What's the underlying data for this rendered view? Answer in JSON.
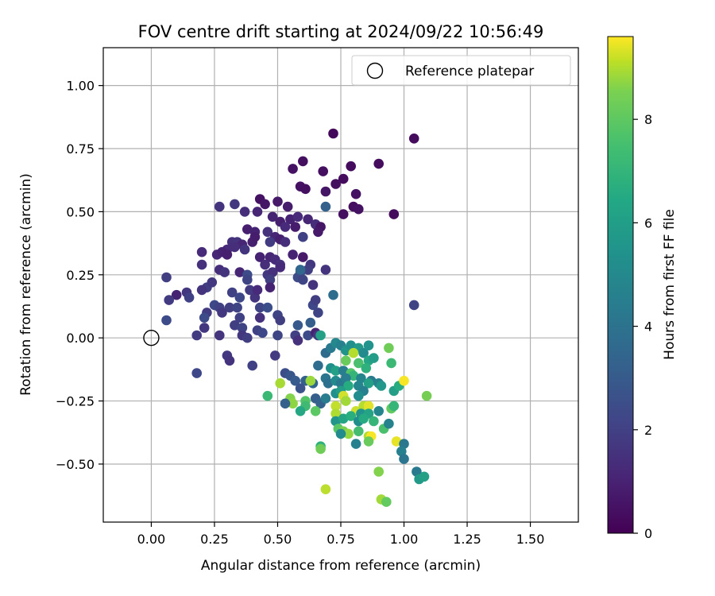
{
  "chart_data": {
    "type": "scatter",
    "title": "FOV centre drift starting at 2024/09/22 10:56:49",
    "xlabel": "Angular distance from reference (arcmin)",
    "ylabel": "Rotation from reference (arcmin)",
    "xlim": [
      -0.19,
      1.69
    ],
    "ylim": [
      -0.73,
      1.15
    ],
    "xticks": [
      "0.00",
      "0.25",
      "0.50",
      "0.75",
      "1.00",
      "1.25",
      "1.50"
    ],
    "xtick_values": [
      0,
      0.25,
      0.5,
      0.75,
      1.0,
      1.25,
      1.5
    ],
    "yticks": [
      "−0.50",
      "−0.25",
      "0.00",
      "0.25",
      "0.50",
      "0.75",
      "1.00"
    ],
    "ytick_values": [
      -0.5,
      -0.25,
      0,
      0.25,
      0.5,
      0.75,
      1.0
    ],
    "grid": true,
    "legend": {
      "placement": "top-right",
      "entries": [
        {
          "label": "Reference platepar",
          "marker": "open-circle"
        }
      ]
    },
    "reference_point": {
      "x": 0.0,
      "y": 0.0
    },
    "colorbar": {
      "label": "Hours from first FF file",
      "colormap": "viridis",
      "range": [
        0,
        9.6
      ],
      "ticks": [
        "0",
        "2",
        "4",
        "6",
        "8"
      ],
      "tick_values": [
        0,
        2,
        4,
        6,
        8
      ]
    },
    "points": [
      {
        "x": 0.72,
        "y": 0.81,
        "h": 0.2
      },
      {
        "x": 1.04,
        "y": 0.79,
        "h": 0.3
      },
      {
        "x": 0.9,
        "y": 0.69,
        "h": 0.3
      },
      {
        "x": 0.6,
        "y": 0.7,
        "h": 0.4
      },
      {
        "x": 0.56,
        "y": 0.67,
        "h": 0.5
      },
      {
        "x": 0.79,
        "y": 0.68,
        "h": 0.3
      },
      {
        "x": 0.68,
        "y": 0.66,
        "h": 0.4
      },
      {
        "x": 0.76,
        "y": 0.63,
        "h": 0.3
      },
      {
        "x": 0.73,
        "y": 0.61,
        "h": 0.4
      },
      {
        "x": 0.59,
        "y": 0.6,
        "h": 0.5
      },
      {
        "x": 0.61,
        "y": 0.59,
        "h": 0.4
      },
      {
        "x": 0.69,
        "y": 0.58,
        "h": 0.6
      },
      {
        "x": 0.81,
        "y": 0.57,
        "h": 0.5
      },
      {
        "x": 0.43,
        "y": 0.55,
        "h": 0.5
      },
      {
        "x": 0.45,
        "y": 0.53,
        "h": 0.6
      },
      {
        "x": 0.5,
        "y": 0.54,
        "h": 0.7
      },
      {
        "x": 0.54,
        "y": 0.52,
        "h": 0.8
      },
      {
        "x": 0.8,
        "y": 0.52,
        "h": 0.4
      },
      {
        "x": 0.82,
        "y": 0.51,
        "h": 0.5
      },
      {
        "x": 0.76,
        "y": 0.49,
        "h": 0.4
      },
      {
        "x": 0.96,
        "y": 0.49,
        "h": 0.3
      },
      {
        "x": 0.69,
        "y": 0.52,
        "h": 3.0
      },
      {
        "x": 0.27,
        "y": 0.52,
        "h": 1.5
      },
      {
        "x": 0.33,
        "y": 0.53,
        "h": 1.6
      },
      {
        "x": 0.37,
        "y": 0.5,
        "h": 1.3
      },
      {
        "x": 0.42,
        "y": 0.5,
        "h": 1.1
      },
      {
        "x": 0.48,
        "y": 0.48,
        "h": 1.0
      },
      {
        "x": 0.51,
        "y": 0.46,
        "h": 0.9
      },
      {
        "x": 0.55,
        "y": 0.47,
        "h": 1.0
      },
      {
        "x": 0.58,
        "y": 0.48,
        "h": 1.2
      },
      {
        "x": 0.62,
        "y": 0.47,
        "h": 1.1
      },
      {
        "x": 0.65,
        "y": 0.45,
        "h": 1.3
      },
      {
        "x": 0.67,
        "y": 0.44,
        "h": 0.6
      },
      {
        "x": 0.66,
        "y": 0.42,
        "h": 0.7
      },
      {
        "x": 0.53,
        "y": 0.44,
        "h": 1.2
      },
      {
        "x": 0.57,
        "y": 0.44,
        "h": 0.8
      },
      {
        "x": 0.38,
        "y": 0.43,
        "h": 0.9
      },
      {
        "x": 0.41,
        "y": 0.42,
        "h": 1.0
      },
      {
        "x": 0.46,
        "y": 0.42,
        "h": 1.4
      },
      {
        "x": 0.49,
        "y": 0.4,
        "h": 1.1
      },
      {
        "x": 0.51,
        "y": 0.39,
        "h": 0.9
      },
      {
        "x": 0.47,
        "y": 0.38,
        "h": 1.7
      },
      {
        "x": 0.32,
        "y": 0.38,
        "h": 1.4
      },
      {
        "x": 0.34,
        "y": 0.38,
        "h": 1.5
      },
      {
        "x": 0.36,
        "y": 0.37,
        "h": 1.1
      },
      {
        "x": 0.4,
        "y": 0.38,
        "h": 0.9
      },
      {
        "x": 0.41,
        "y": 0.4,
        "h": 0.8
      },
      {
        "x": 0.53,
        "y": 0.38,
        "h": 1.3
      },
      {
        "x": 0.6,
        "y": 0.4,
        "h": 1.9
      },
      {
        "x": 0.3,
        "y": 0.35,
        "h": 1.2
      },
      {
        "x": 0.33,
        "y": 0.36,
        "h": 1.3
      },
      {
        "x": 0.37,
        "y": 0.35,
        "h": 1.5
      },
      {
        "x": 0.26,
        "y": 0.33,
        "h": 1.1
      },
      {
        "x": 0.28,
        "y": 0.34,
        "h": 1.0
      },
      {
        "x": 0.3,
        "y": 0.33,
        "h": 0.9
      },
      {
        "x": 0.2,
        "y": 0.34,
        "h": 1.2
      },
      {
        "x": 0.43,
        "y": 0.32,
        "h": 1.0
      },
      {
        "x": 0.47,
        "y": 0.32,
        "h": 1.1
      },
      {
        "x": 0.45,
        "y": 0.29,
        "h": 1.3
      },
      {
        "x": 0.49,
        "y": 0.31,
        "h": 1.2
      },
      {
        "x": 0.51,
        "y": 0.29,
        "h": 1.4
      },
      {
        "x": 0.56,
        "y": 0.33,
        "h": 1.0
      },
      {
        "x": 0.6,
        "y": 0.32,
        "h": 0.7
      },
      {
        "x": 0.63,
        "y": 0.29,
        "h": 1.6
      },
      {
        "x": 0.62,
        "y": 0.27,
        "h": 1.8
      },
      {
        "x": 0.59,
        "y": 0.26,
        "h": 2.4
      },
      {
        "x": 0.58,
        "y": 0.24,
        "h": 2.2
      },
      {
        "x": 0.6,
        "y": 0.23,
        "h": 2.0
      },
      {
        "x": 0.2,
        "y": 0.29,
        "h": 1.4
      },
      {
        "x": 0.27,
        "y": 0.27,
        "h": 1.3
      },
      {
        "x": 0.29,
        "y": 0.26,
        "h": 1.5
      },
      {
        "x": 0.35,
        "y": 0.26,
        "h": 1.1
      },
      {
        "x": 0.38,
        "y": 0.25,
        "h": 2.2
      },
      {
        "x": 0.38,
        "y": 0.23,
        "h": 2.0
      },
      {
        "x": 0.46,
        "y": 0.25,
        "h": 1.6
      },
      {
        "x": 0.48,
        "y": 0.26,
        "h": 1.4
      },
      {
        "x": 0.51,
        "y": 0.28,
        "h": 1.2
      },
      {
        "x": 0.47,
        "y": 0.23,
        "h": 1.8
      },
      {
        "x": 0.06,
        "y": 0.24,
        "h": 1.8
      },
      {
        "x": 0.1,
        "y": 0.17,
        "h": 1.0
      },
      {
        "x": 0.14,
        "y": 0.18,
        "h": 1.6
      },
      {
        "x": 0.07,
        "y": 0.15,
        "h": 1.7
      },
      {
        "x": 0.15,
        "y": 0.16,
        "h": 1.9
      },
      {
        "x": 0.22,
        "y": 0.2,
        "h": 1.8
      },
      {
        "x": 0.24,
        "y": 0.22,
        "h": 1.6
      },
      {
        "x": 0.2,
        "y": 0.19,
        "h": 1.5
      },
      {
        "x": 0.32,
        "y": 0.18,
        "h": 1.9
      },
      {
        "x": 0.35,
        "y": 0.16,
        "h": 2.1
      },
      {
        "x": 0.39,
        "y": 0.19,
        "h": 1.7
      },
      {
        "x": 0.41,
        "y": 0.16,
        "h": 1.5
      },
      {
        "x": 0.42,
        "y": 0.19,
        "h": 1.2
      },
      {
        "x": 0.47,
        "y": 0.2,
        "h": 1.0
      },
      {
        "x": 0.43,
        "y": 0.12,
        "h": 2.0
      },
      {
        "x": 0.46,
        "y": 0.12,
        "h": 2.3
      },
      {
        "x": 0.25,
        "y": 0.13,
        "h": 2.1
      },
      {
        "x": 0.27,
        "y": 0.12,
        "h": 1.9
      },
      {
        "x": 0.31,
        "y": 0.12,
        "h": 1.8
      },
      {
        "x": 0.34,
        "y": 0.12,
        "h": 2.0
      },
      {
        "x": 0.28,
        "y": 0.1,
        "h": 1.6
      },
      {
        "x": 0.22,
        "y": 0.1,
        "h": 1.7
      },
      {
        "x": 0.21,
        "y": 0.08,
        "h": 2.2
      },
      {
        "x": 0.35,
        "y": 0.08,
        "h": 1.9
      },
      {
        "x": 0.43,
        "y": 0.08,
        "h": 1.4
      },
      {
        "x": 0.5,
        "y": 0.09,
        "h": 2.0
      },
      {
        "x": 0.51,
        "y": 0.07,
        "h": 1.8
      },
      {
        "x": 0.06,
        "y": 0.07,
        "h": 2.2
      },
      {
        "x": 0.21,
        "y": 0.04,
        "h": 1.6
      },
      {
        "x": 0.33,
        "y": 0.05,
        "h": 1.8
      },
      {
        "x": 0.36,
        "y": 0.04,
        "h": 2.0
      },
      {
        "x": 0.42,
        "y": 0.03,
        "h": 1.9
      },
      {
        "x": 0.44,
        "y": 0.02,
        "h": 2.1
      },
      {
        "x": 0.18,
        "y": 0.01,
        "h": 1.7
      },
      {
        "x": 0.27,
        "y": 0.01,
        "h": 1.5
      },
      {
        "x": 0.36,
        "y": 0.01,
        "h": 1.6
      },
      {
        "x": 0.38,
        "y": 0.0,
        "h": 1.8
      },
      {
        "x": 0.5,
        "y": 0.01,
        "h": 2.0
      },
      {
        "x": 0.57,
        "y": 0.01,
        "h": 1.9
      },
      {
        "x": 0.58,
        "y": -0.01,
        "h": 1.4
      },
      {
        "x": 0.62,
        "y": 0.01,
        "h": 2.2
      },
      {
        "x": 0.65,
        "y": 0.02,
        "h": 1.0
      },
      {
        "x": 0.66,
        "y": 0.01,
        "h": 1.6
      },
      {
        "x": 0.3,
        "y": -0.07,
        "h": 1.6
      },
      {
        "x": 0.31,
        "y": -0.09,
        "h": 1.5
      },
      {
        "x": 0.4,
        "y": -0.11,
        "h": 1.9
      },
      {
        "x": 0.49,
        "y": -0.07,
        "h": 1.7
      },
      {
        "x": 0.18,
        "y": -0.14,
        "h": 2.1
      },
      {
        "x": 0.58,
        "y": 0.05,
        "h": 2.7
      },
      {
        "x": 0.63,
        "y": 0.06,
        "h": 2.9
      },
      {
        "x": 0.64,
        "y": 0.13,
        "h": 2.1
      },
      {
        "x": 0.65,
        "y": 0.15,
        "h": 1.8
      },
      {
        "x": 0.66,
        "y": 0.1,
        "h": 2.0
      },
      {
        "x": 0.72,
        "y": 0.17,
        "h": 3.5
      },
      {
        "x": 0.69,
        "y": 0.27,
        "h": 1.5
      },
      {
        "x": 0.64,
        "y": 0.21,
        "h": 1.5
      },
      {
        "x": 0.59,
        "y": 0.27,
        "h": 3.2
      },
      {
        "x": 1.04,
        "y": 0.13,
        "h": 2.0
      },
      {
        "x": 0.67,
        "y": 0.01,
        "h": 5.5
      },
      {
        "x": 0.69,
        "y": -0.06,
        "h": 3.4
      },
      {
        "x": 0.71,
        "y": -0.04,
        "h": 4.0
      },
      {
        "x": 0.73,
        "y": -0.02,
        "h": 4.5
      },
      {
        "x": 0.75,
        "y": -0.03,
        "h": 4.2
      },
      {
        "x": 0.77,
        "y": -0.05,
        "h": 5.0
      },
      {
        "x": 0.79,
        "y": -0.03,
        "h": 4.8
      },
      {
        "x": 0.82,
        "y": -0.04,
        "h": 5.2
      },
      {
        "x": 0.84,
        "y": -0.06,
        "h": 4.6
      },
      {
        "x": 0.86,
        "y": -0.03,
        "h": 4.9
      },
      {
        "x": 0.8,
        "y": -0.06,
        "h": 8.6
      },
      {
        "x": 0.77,
        "y": -0.09,
        "h": 7.4
      },
      {
        "x": 0.82,
        "y": -0.1,
        "h": 6.8
      },
      {
        "x": 0.86,
        "y": -0.09,
        "h": 5.8
      },
      {
        "x": 0.88,
        "y": -0.08,
        "h": 5.3
      },
      {
        "x": 0.85,
        "y": -0.12,
        "h": 6.2
      },
      {
        "x": 0.94,
        "y": -0.04,
        "h": 7.5
      },
      {
        "x": 0.95,
        "y": -0.1,
        "h": 6.5
      },
      {
        "x": 0.66,
        "y": -0.11,
        "h": 3.5
      },
      {
        "x": 0.71,
        "y": -0.12,
        "h": 4.8
      },
      {
        "x": 0.73,
        "y": -0.13,
        "h": 5.5
      },
      {
        "x": 0.76,
        "y": -0.13,
        "h": 4.1
      },
      {
        "x": 0.79,
        "y": -0.14,
        "h": 7.0
      },
      {
        "x": 0.8,
        "y": -0.15,
        "h": 6.4
      },
      {
        "x": 0.83,
        "y": -0.16,
        "h": 4.4
      },
      {
        "x": 0.87,
        "y": -0.17,
        "h": 4.0
      },
      {
        "x": 0.9,
        "y": -0.18,
        "h": 4.3
      },
      {
        "x": 0.91,
        "y": -0.19,
        "h": 5.1
      },
      {
        "x": 0.86,
        "y": -0.18,
        "h": 5.5
      },
      {
        "x": 0.53,
        "y": -0.14,
        "h": 2.3
      },
      {
        "x": 0.55,
        "y": -0.15,
        "h": 2.6
      },
      {
        "x": 0.57,
        "y": -0.17,
        "h": 2.8
      },
      {
        "x": 0.61,
        "y": -0.17,
        "h": 3.0
      },
      {
        "x": 0.64,
        "y": -0.18,
        "h": 3.2
      },
      {
        "x": 0.69,
        "y": -0.16,
        "h": 3.8
      },
      {
        "x": 0.7,
        "y": -0.18,
        "h": 3.6
      },
      {
        "x": 0.73,
        "y": -0.17,
        "h": 4.6
      },
      {
        "x": 0.75,
        "y": -0.18,
        "h": 3.9
      },
      {
        "x": 0.77,
        "y": -0.16,
        "h": 4.1
      },
      {
        "x": 0.78,
        "y": -0.19,
        "h": 6.0
      },
      {
        "x": 0.82,
        "y": -0.19,
        "h": 4.4
      },
      {
        "x": 0.84,
        "y": -0.21,
        "h": 4.2
      },
      {
        "x": 0.73,
        "y": -0.22,
        "h": 4.8
      },
      {
        "x": 0.75,
        "y": -0.21,
        "h": 5.3
      },
      {
        "x": 0.82,
        "y": -0.23,
        "h": 4.7
      },
      {
        "x": 0.59,
        "y": -0.2,
        "h": 2.5
      },
      {
        "x": 0.65,
        "y": -0.24,
        "h": 2.9
      },
      {
        "x": 0.67,
        "y": -0.26,
        "h": 3.1
      },
      {
        "x": 0.69,
        "y": -0.24,
        "h": 4.1
      },
      {
        "x": 0.96,
        "y": -0.21,
        "h": 5.4
      },
      {
        "x": 0.98,
        "y": -0.19,
        "h": 6.0
      },
      {
        "x": 1.0,
        "y": -0.17,
        "h": 9.5
      },
      {
        "x": 0.51,
        "y": -0.18,
        "h": 8.4
      },
      {
        "x": 0.55,
        "y": -0.24,
        "h": 7.8
      },
      {
        "x": 0.56,
        "y": -0.26,
        "h": 8.0
      },
      {
        "x": 0.53,
        "y": -0.26,
        "h": 3.0
      },
      {
        "x": 0.46,
        "y": -0.23,
        "h": 6.5
      },
      {
        "x": 0.61,
        "y": -0.25,
        "h": 7.0
      },
      {
        "x": 0.61,
        "y": -0.27,
        "h": 6.6
      },
      {
        "x": 0.63,
        "y": -0.17,
        "h": 8.2
      },
      {
        "x": 0.65,
        "y": -0.29,
        "h": 7.2
      },
      {
        "x": 0.59,
        "y": -0.29,
        "h": 5.8
      },
      {
        "x": 0.73,
        "y": -0.27,
        "h": 8.8
      },
      {
        "x": 0.73,
        "y": -0.3,
        "h": 8.5
      },
      {
        "x": 0.76,
        "y": -0.23,
        "h": 9.0
      },
      {
        "x": 0.77,
        "y": -0.25,
        "h": 8.3
      },
      {
        "x": 0.81,
        "y": -0.29,
        "h": 8.9
      },
      {
        "x": 0.84,
        "y": -0.27,
        "h": 8.6
      },
      {
        "x": 0.86,
        "y": -0.27,
        "h": 9.2
      },
      {
        "x": 0.83,
        "y": -0.3,
        "h": 4.9
      },
      {
        "x": 0.86,
        "y": -0.3,
        "h": 5.6
      },
      {
        "x": 0.9,
        "y": -0.29,
        "h": 4.4
      },
      {
        "x": 0.95,
        "y": -0.28,
        "h": 7.3
      },
      {
        "x": 0.96,
        "y": -0.27,
        "h": 6.4
      },
      {
        "x": 1.09,
        "y": -0.23,
        "h": 7.6
      },
      {
        "x": 0.73,
        "y": -0.33,
        "h": 5.0
      },
      {
        "x": 0.76,
        "y": -0.32,
        "h": 5.7
      },
      {
        "x": 0.79,
        "y": -0.31,
        "h": 6.1
      },
      {
        "x": 0.82,
        "y": -0.33,
        "h": 4.7
      },
      {
        "x": 0.84,
        "y": -0.32,
        "h": 5.9
      },
      {
        "x": 0.88,
        "y": -0.33,
        "h": 6.4
      },
      {
        "x": 0.92,
        "y": -0.36,
        "h": 6.8
      },
      {
        "x": 0.94,
        "y": -0.34,
        "h": 4.3
      },
      {
        "x": 0.74,
        "y": -0.36,
        "h": 7.1
      },
      {
        "x": 0.76,
        "y": -0.37,
        "h": 7.7
      },
      {
        "x": 0.78,
        "y": -0.38,
        "h": 8.1
      },
      {
        "x": 0.82,
        "y": -0.37,
        "h": 6.7
      },
      {
        "x": 0.86,
        "y": -0.39,
        "h": 8.5
      },
      {
        "x": 0.87,
        "y": -0.39,
        "h": 9.5
      },
      {
        "x": 0.75,
        "y": -0.38,
        "h": 4.6
      },
      {
        "x": 0.81,
        "y": -0.42,
        "h": 4.2
      },
      {
        "x": 0.86,
        "y": -0.41,
        "h": 7.4
      },
      {
        "x": 0.97,
        "y": -0.41,
        "h": 9.3
      },
      {
        "x": 1.0,
        "y": -0.42,
        "h": 3.9
      },
      {
        "x": 0.99,
        "y": -0.45,
        "h": 4.2
      },
      {
        "x": 0.67,
        "y": -0.43,
        "h": 6.2
      },
      {
        "x": 0.67,
        "y": -0.44,
        "h": 7.5
      },
      {
        "x": 1.0,
        "y": -0.48,
        "h": 3.8
      },
      {
        "x": 1.05,
        "y": -0.53,
        "h": 4.0
      },
      {
        "x": 1.06,
        "y": -0.56,
        "h": 5.2
      },
      {
        "x": 1.08,
        "y": -0.55,
        "h": 5.5
      },
      {
        "x": 0.9,
        "y": -0.53,
        "h": 7.8
      },
      {
        "x": 0.69,
        "y": -0.6,
        "h": 8.7
      },
      {
        "x": 0.91,
        "y": -0.64,
        "h": 8.3
      },
      {
        "x": 0.93,
        "y": -0.65,
        "h": 7.3
      }
    ]
  }
}
